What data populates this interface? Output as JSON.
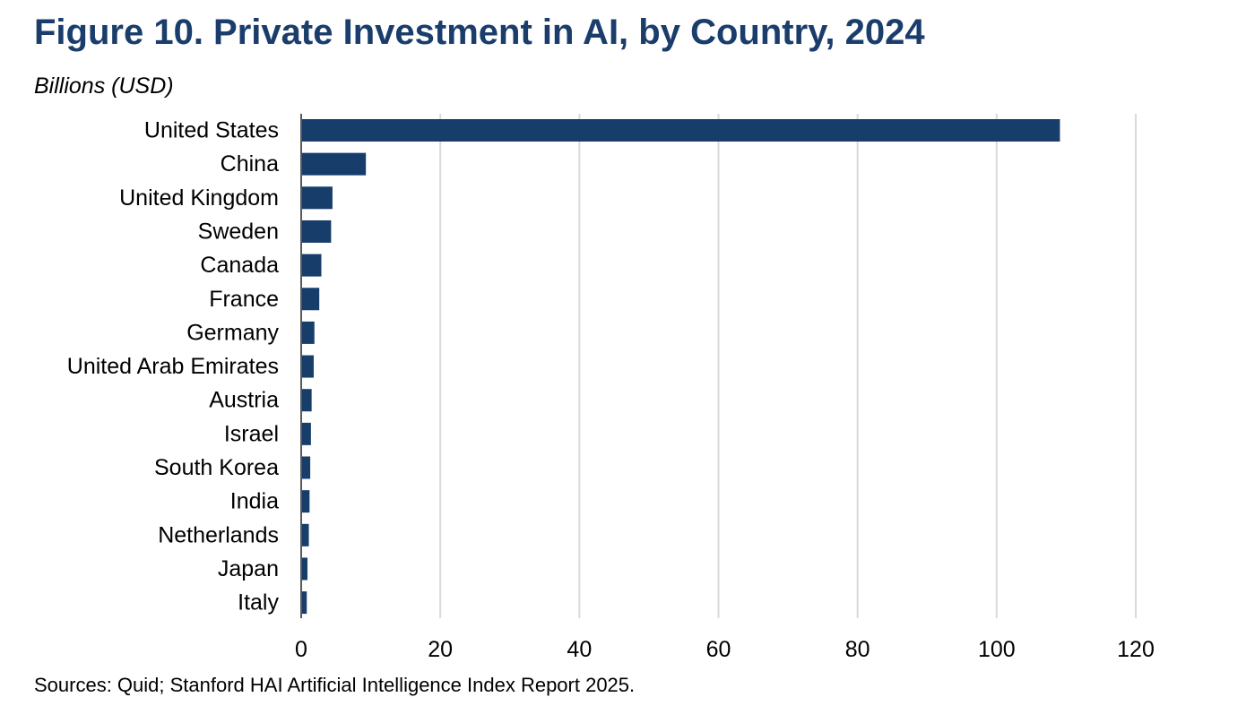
{
  "header": {
    "title": "Figure 10. Private Investment in AI, by Country, 2024",
    "subtitle": "Billions (USD)"
  },
  "footer": {
    "source": "Sources: Quid; Stanford HAI Artificial Intelligence Index Report 2025."
  },
  "colors": {
    "bar": "#173d6b",
    "title": "#1a3d6b",
    "grid": "#d9d9d9",
    "axis": "#595959"
  },
  "chart_data": {
    "type": "bar",
    "orientation": "horizontal",
    "title": "Figure 10. Private Investment in AI, by Country, 2024",
    "ylabel": "Billions (USD)",
    "categories": [
      "United States",
      "China",
      "United Kingdom",
      "Sweden",
      "Canada",
      "France",
      "Germany",
      "United Arab Emirates",
      "Austria",
      "Israel",
      "South Korea",
      "India",
      "Netherlands",
      "Japan",
      "Italy"
    ],
    "values": [
      109.1,
      9.3,
      4.5,
      4.3,
      2.9,
      2.6,
      1.9,
      1.8,
      1.5,
      1.4,
      1.3,
      1.2,
      1.1,
      0.9,
      0.8
    ],
    "xlim": [
      0,
      120
    ],
    "xticks": [
      0,
      20,
      40,
      60,
      80,
      100,
      120
    ],
    "grid": true,
    "legend": "none"
  }
}
